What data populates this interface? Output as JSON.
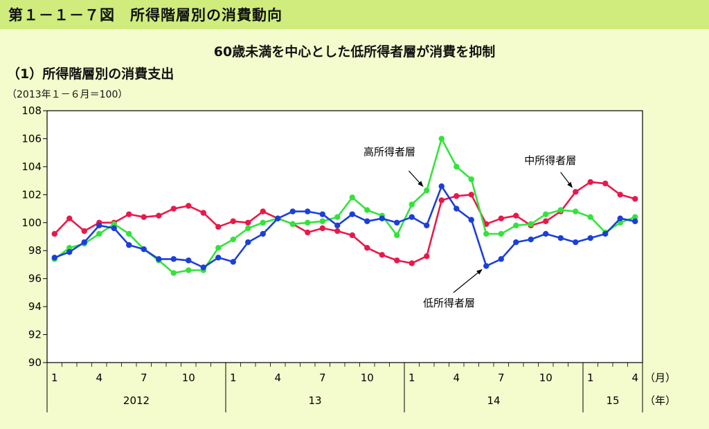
{
  "figure": {
    "title": "第１－１－７図　所得階層別の消費動向",
    "subtitle": "60歳未満を中心とした低所得者層が消費を抑制",
    "section_title": "（1）所得階層別の消費支出",
    "unit_note": "（2013年１－６月＝100）"
  },
  "chart_data": {
    "type": "line",
    "ylim": [
      90,
      108
    ],
    "yticks": [
      90,
      92,
      94,
      96,
      98,
      100,
      102,
      104,
      106,
      108
    ],
    "x_tick_labels": [
      "1",
      "4",
      "7",
      "10",
      "1",
      "4",
      "7",
      "10",
      "1",
      "4",
      "7",
      "10",
      "1",
      "4"
    ],
    "x_tick_months": [
      0,
      3,
      6,
      9,
      12,
      15,
      18,
      21,
      24,
      27,
      30,
      33,
      36,
      39
    ],
    "x_unit": "（月）",
    "years": [
      {
        "label": "2012",
        "start": 0,
        "end": 12
      },
      {
        "label": "13",
        "start": 12,
        "end": 24
      },
      {
        "label": "14",
        "start": 24,
        "end": 36
      },
      {
        "label": "15",
        "start": 36,
        "end": 40
      }
    ],
    "year_unit": "（年）",
    "series": [
      {
        "name": "中所得者層",
        "color": "#e8194a",
        "values": [
          99.2,
          100.3,
          99.4,
          100.0,
          100.0,
          100.6,
          100.4,
          100.5,
          101.0,
          101.2,
          100.7,
          99.7,
          100.1,
          100.0,
          100.8,
          100.3,
          99.9,
          99.3,
          99.6,
          99.4,
          99.1,
          98.2,
          97.7,
          97.3,
          97.1,
          97.6,
          101.6,
          101.9,
          102.0,
          99.9,
          100.3,
          100.5,
          99.8,
          100.1,
          100.8,
          102.2,
          102.9,
          102.8,
          102.0,
          101.7
        ]
      },
      {
        "name": "高所得者層",
        "color": "#33e33b",
        "values": [
          97.4,
          98.2,
          98.5,
          99.2,
          99.9,
          99.2,
          98.1,
          97.3,
          96.4,
          96.6,
          96.6,
          98.2,
          98.8,
          99.6,
          100.0,
          100.3,
          99.9,
          100.0,
          100.1,
          100.4,
          101.8,
          100.9,
          100.5,
          99.1,
          101.3,
          102.3,
          106.0,
          104.0,
          103.1,
          99.2,
          99.2,
          99.8,
          99.9,
          100.6,
          100.9,
          100.8,
          100.4,
          99.3,
          100.0,
          100.4
        ]
      },
      {
        "name": "低所得者層",
        "color": "#1b3fd8",
        "values": [
          97.5,
          97.9,
          98.6,
          99.8,
          99.6,
          98.4,
          98.1,
          97.4,
          97.4,
          97.3,
          96.8,
          97.5,
          97.2,
          98.6,
          99.2,
          100.3,
          100.8,
          100.8,
          100.6,
          99.8,
          100.6,
          100.1,
          100.3,
          100.0,
          100.4,
          99.8,
          102.6,
          101.0,
          100.2,
          96.9,
          97.4,
          98.6,
          98.8,
          99.2,
          98.9,
          98.6,
          98.9,
          99.2,
          100.3,
          100.1
        ]
      }
    ],
    "annotations": [
      {
        "text": "高所得者層",
        "series": 1,
        "point": 25,
        "lx": 22.5,
        "ly": 104.8,
        "ax": 23.8,
        "ay": 103.7
      },
      {
        "text": "中所得者層",
        "series": 0,
        "point": 35,
        "lx": 33.3,
        "ly": 104.2,
        "ax": 34.0,
        "ay": 103.6
      },
      {
        "text": "低所得者層",
        "series": 2,
        "point": 29,
        "lx": 26.5,
        "ly": 94.0,
        "ax": 26.8,
        "ay": 95.0
      }
    ]
  }
}
